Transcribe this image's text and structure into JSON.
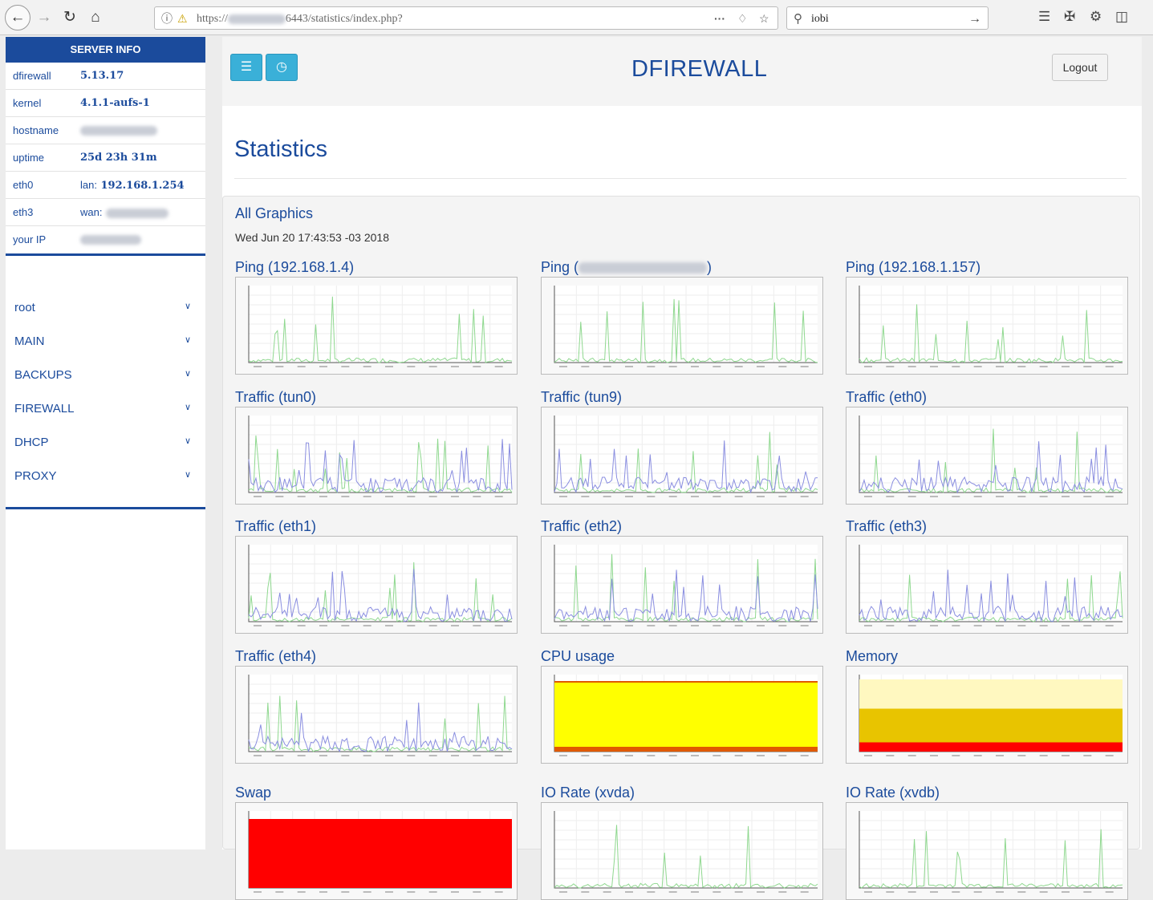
{
  "browser": {
    "url_prefix": "https://",
    "url_suffix": "6443/statistics/index.php?",
    "search_value": "iobi"
  },
  "server_info": {
    "header": "SERVER INFO",
    "rows": [
      {
        "key": "dfirewall",
        "value": "5.13.17"
      },
      {
        "key": "kernel",
        "value": "4.1.1-aufs-1"
      },
      {
        "key": "hostname",
        "value": ""
      },
      {
        "key": "uptime",
        "value": "25d 23h 31m"
      },
      {
        "key": "eth0",
        "prefix": "lan:",
        "value": "192.168.1.254"
      },
      {
        "key": "eth3",
        "prefix": "wan:",
        "value": ""
      },
      {
        "key": "your IP",
        "value": ""
      }
    ]
  },
  "menu": [
    {
      "label": "root"
    },
    {
      "label": "MAIN"
    },
    {
      "label": "BACKUPS"
    },
    {
      "label": "FIREWALL"
    },
    {
      "label": "DHCP"
    },
    {
      "label": "PROXY"
    }
  ],
  "header": {
    "brand": "DFIREWALL",
    "logout_label": "Logout"
  },
  "page": {
    "title": "Statistics",
    "panel_title": "All Graphics",
    "date": "Wed Jun 20 17:43:53 -03 2018"
  },
  "graphs": [
    {
      "title": "Ping (192.168.1.4)",
      "kind": "ping"
    },
    {
      "title": "Ping (",
      "title_suffix": ")",
      "kind": "ping"
    },
    {
      "title": "Ping (192.168.1.157)",
      "kind": "ping"
    },
    {
      "title": "Traffic (tun0)",
      "kind": "traffic"
    },
    {
      "title": "Traffic (tun9)",
      "kind": "traffic"
    },
    {
      "title": "Traffic (eth0)",
      "kind": "traffic"
    },
    {
      "title": "Traffic (eth1)",
      "kind": "traffic"
    },
    {
      "title": "Traffic (eth2)",
      "kind": "traffic"
    },
    {
      "title": "Traffic (eth3)",
      "kind": "traffic"
    },
    {
      "title": "Traffic (eth4)",
      "kind": "traffic"
    },
    {
      "title": "CPU usage",
      "kind": "cpu"
    },
    {
      "title": "Memory",
      "kind": "memory"
    },
    {
      "title": "Swap",
      "kind": "swap"
    },
    {
      "title": "IO Rate (xvda)",
      "kind": "io"
    },
    {
      "title": "IO Rate (xvdb)",
      "kind": "io"
    }
  ],
  "colors": {
    "primary": "#1b4b9c",
    "button": "#3ab0d8",
    "series_green": "#8fd88f",
    "series_blue": "#8a8ee0",
    "cpu_yellow": "#ffff00",
    "swap_red": "#ff0000"
  }
}
